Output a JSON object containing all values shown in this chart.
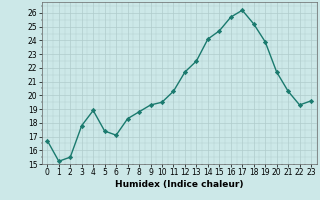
{
  "x": [
    0,
    1,
    2,
    3,
    4,
    5,
    6,
    7,
    8,
    9,
    10,
    11,
    12,
    13,
    14,
    15,
    16,
    17,
    18,
    19,
    20,
    21,
    22,
    23
  ],
  "y": [
    16.7,
    15.2,
    15.5,
    17.8,
    18.9,
    17.4,
    17.1,
    18.3,
    18.8,
    19.3,
    19.5,
    20.3,
    21.7,
    22.5,
    24.1,
    24.7,
    25.7,
    26.2,
    25.2,
    23.9,
    21.7,
    20.3,
    19.3,
    19.6
  ],
  "line_color": "#1a7a6e",
  "marker": "D",
  "markersize": 2.2,
  "linewidth": 1.0,
  "xlabel": "Humidex (Indice chaleur)",
  "xlim": [
    -0.5,
    23.5
  ],
  "ylim": [
    15,
    26.8
  ],
  "yticks": [
    15,
    16,
    17,
    18,
    19,
    20,
    21,
    22,
    23,
    24,
    25,
    26
  ],
  "xticks": [
    0,
    1,
    2,
    3,
    4,
    5,
    6,
    7,
    8,
    9,
    10,
    11,
    12,
    13,
    14,
    15,
    16,
    17,
    18,
    19,
    20,
    21,
    22,
    23
  ],
  "bg_color": "#cce8e8",
  "grid_color": "#b0cccc",
  "xlabel_fontsize": 6.5,
  "tick_fontsize": 5.5
}
